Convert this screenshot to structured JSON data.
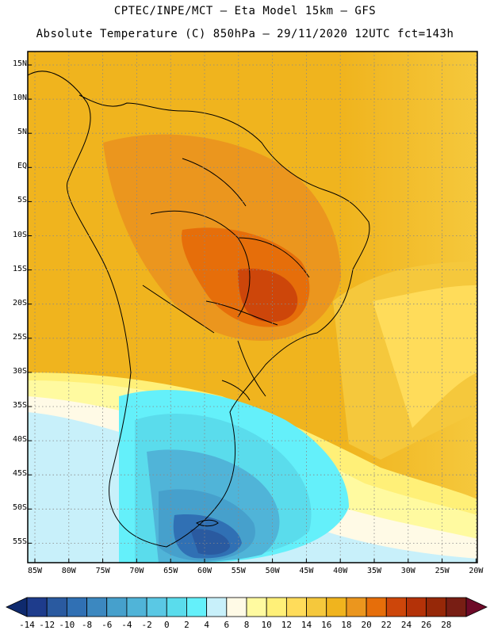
{
  "title_line1": "CPTEC/INPE/MCT –  Eta Model 15km – GFS",
  "title_line2": "Absolute Temperature (C) 850hPa – 29/11/2020 12UTC fct=143h",
  "lat_labels": [
    "15N",
    "10N",
    "5N",
    "EQ",
    "5S",
    "10S",
    "15S",
    "20S",
    "25S",
    "30S",
    "35S",
    "40S",
    "45S",
    "50S",
    "55S"
  ],
  "lon_labels": [
    "85W",
    "80W",
    "75W",
    "70W",
    "65W",
    "60W",
    "55W",
    "50W",
    "45W",
    "40W",
    "35W",
    "30W",
    "25W",
    "20W"
  ],
  "colorbar": {
    "ticks": [
      "-14",
      "-12",
      "-10",
      "-8",
      "-6",
      "-4",
      "-2",
      "0",
      "2",
      "4",
      "6",
      "8",
      "10",
      "12",
      "14",
      "16",
      "18",
      "20",
      "22",
      "24",
      "26",
      "28"
    ],
    "colors": [
      "#1e3c8c",
      "#2a5aa0",
      "#3070b4",
      "#3c88c0",
      "#46a0cc",
      "#50b4d8",
      "#5ac8e4",
      "#5adcec",
      "#64f0fa",
      "#c8f0fa",
      "#fffae6",
      "#fffaa0",
      "#fff078",
      "#ffdc5a",
      "#f5c83c",
      "#f0b41e",
      "#eb961e",
      "#e66e0a",
      "#cd460a",
      "#b43208",
      "#962808",
      "#781e14"
    ],
    "end_low": "#0f2a6e",
    "end_high": "#6e0a28"
  }
}
